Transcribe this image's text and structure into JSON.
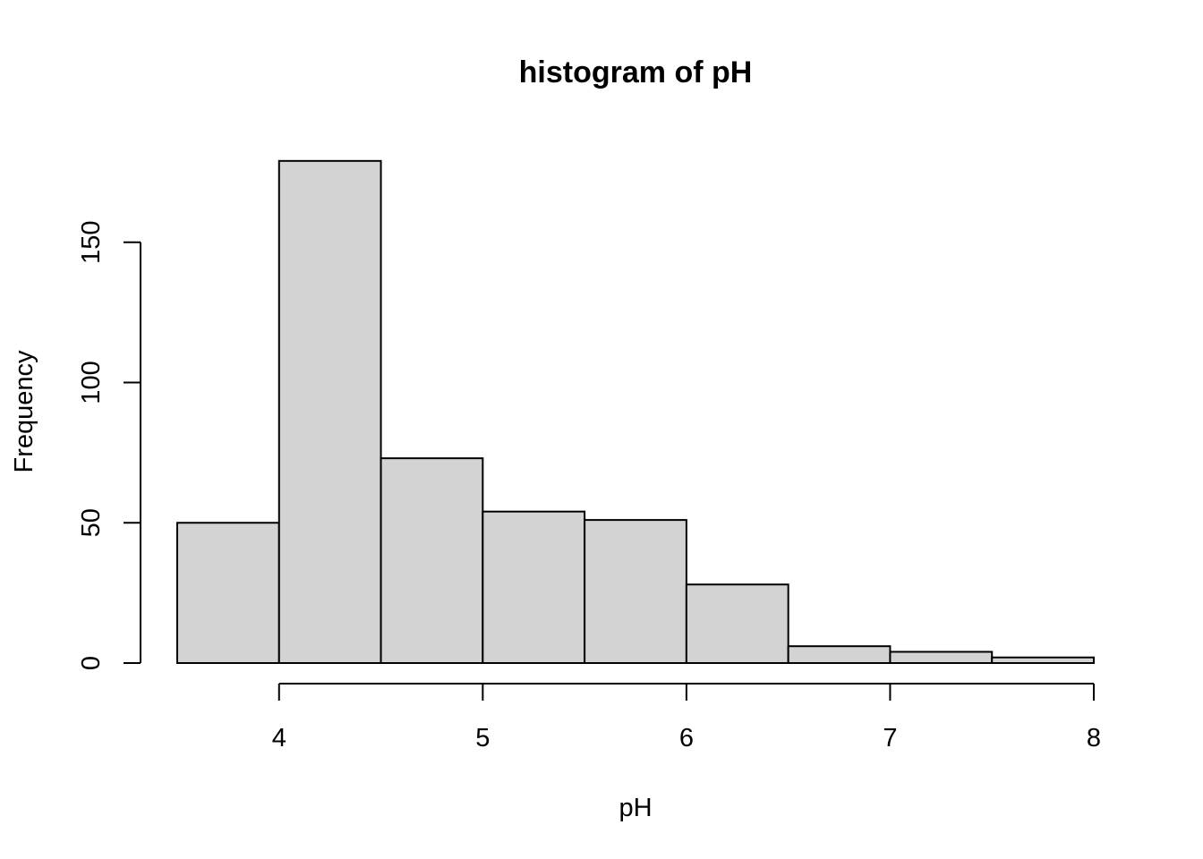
{
  "chart_data": {
    "type": "bar",
    "title": "histogram of pH",
    "xlabel": "pH",
    "ylabel": "Frequency",
    "bins": [
      {
        "start": 3.5,
        "end": 4.0,
        "count": 50
      },
      {
        "start": 4.0,
        "end": 4.5,
        "count": 179
      },
      {
        "start": 4.5,
        "end": 5.0,
        "count": 73
      },
      {
        "start": 5.0,
        "end": 5.5,
        "count": 54
      },
      {
        "start": 5.5,
        "end": 6.0,
        "count": 51
      },
      {
        "start": 6.0,
        "end": 6.5,
        "count": 28
      },
      {
        "start": 6.5,
        "end": 7.0,
        "count": 6
      },
      {
        "start": 7.0,
        "end": 7.5,
        "count": 4
      },
      {
        "start": 7.5,
        "end": 8.0,
        "count": 2
      }
    ],
    "xticks": [
      "4",
      "5",
      "6",
      "7",
      "8"
    ],
    "yticks": [
      "0",
      "50",
      "100",
      "150"
    ],
    "xlim": [
      3.5,
      8.0
    ],
    "ylim": [
      0,
      179
    ],
    "bar_color": "#d3d3d3",
    "edge_color": "#000000",
    "grid": false,
    "legend": "none"
  }
}
